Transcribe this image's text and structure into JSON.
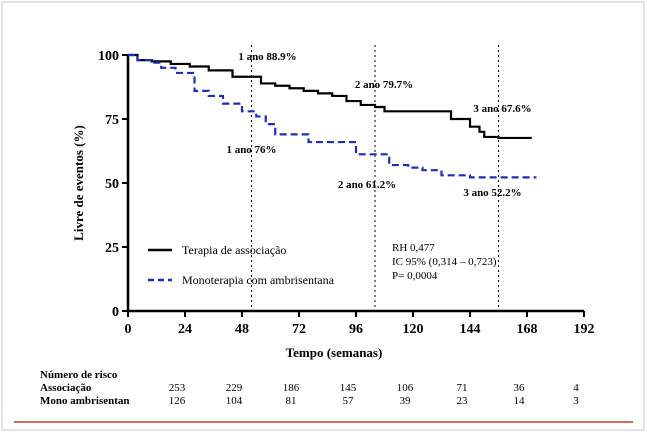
{
  "chart_data": {
    "type": "line",
    "xlabel": "Tempo (semanas)",
    "ylabel": "Livre de eventos (%)",
    "xlim": [
      0,
      192
    ],
    "ylim": [
      0,
      100
    ],
    "x_ticks": [
      "0",
      "24",
      "48",
      "72",
      "96",
      "120",
      "144",
      "168",
      "192"
    ],
    "y_ticks": [
      "0",
      "25",
      "50",
      "75",
      "100"
    ],
    "grid": false,
    "legend_position": "bottom-left",
    "series": [
      {
        "name": "Terapia de associação",
        "color": "#000000",
        "style": "solid",
        "x": [
          0,
          4,
          10,
          18,
          26,
          34,
          44,
          56,
          62,
          68,
          74,
          80,
          86,
          92,
          98,
          104,
          108,
          116,
          124,
          136,
          144,
          148,
          150,
          156,
          162,
          170
        ],
        "y": [
          100,
          98,
          97.5,
          96.5,
          95.5,
          94,
          91.5,
          88.9,
          88,
          87,
          86,
          85,
          84,
          82,
          80.5,
          79.7,
          78,
          78,
          78,
          75,
          72,
          70,
          68,
          67.6,
          67.6,
          67.6
        ]
      },
      {
        "name": "Monoterapia com ambrisentana",
        "color": "#1f2dbd",
        "style": "dashed",
        "x": [
          0,
          4,
          10,
          14,
          20,
          28,
          34,
          40,
          48,
          54,
          58,
          62,
          70,
          76,
          86,
          90,
          96,
          106,
          110,
          118,
          124,
          132,
          144,
          156,
          164,
          172
        ],
        "y": [
          100,
          98,
          97,
          95,
          93,
          86,
          84,
          81,
          78,
          76,
          73,
          69,
          69,
          66,
          66,
          66,
          61.2,
          61.2,
          57,
          56,
          55,
          53,
          52.2,
          52.2,
          52.2,
          52.2
        ]
      }
    ],
    "annotations": [
      {
        "text": "1 ano 88.9%",
        "x": 52
      },
      {
        "text": "2 ano 79.7%",
        "x": 104
      },
      {
        "text": "3 ano 67.6%",
        "x": 156
      },
      {
        "text": "1 ano 76%",
        "x": 52
      },
      {
        "text": "2 ano 61.2%",
        "x": 104
      },
      {
        "text": "3 ano 52.2%",
        "x": 156
      }
    ],
    "reference_lines_x": [
      52,
      104,
      156
    ],
    "stats": [
      "RH 0,477",
      "IC 95% (0,314 – 0,723)",
      "P= 0,0004"
    ],
    "risk_table": {
      "header": "Número de risco",
      "rows": [
        {
          "label": "Associação",
          "values": [
            "253",
            "229",
            "186",
            "145",
            "106",
            "71",
            "36",
            "4"
          ]
        },
        {
          "label": "Mono ambrisentan",
          "values": [
            "126",
            "104",
            "81",
            "57",
            "39",
            "23",
            "14",
            "3"
          ]
        }
      ]
    }
  }
}
